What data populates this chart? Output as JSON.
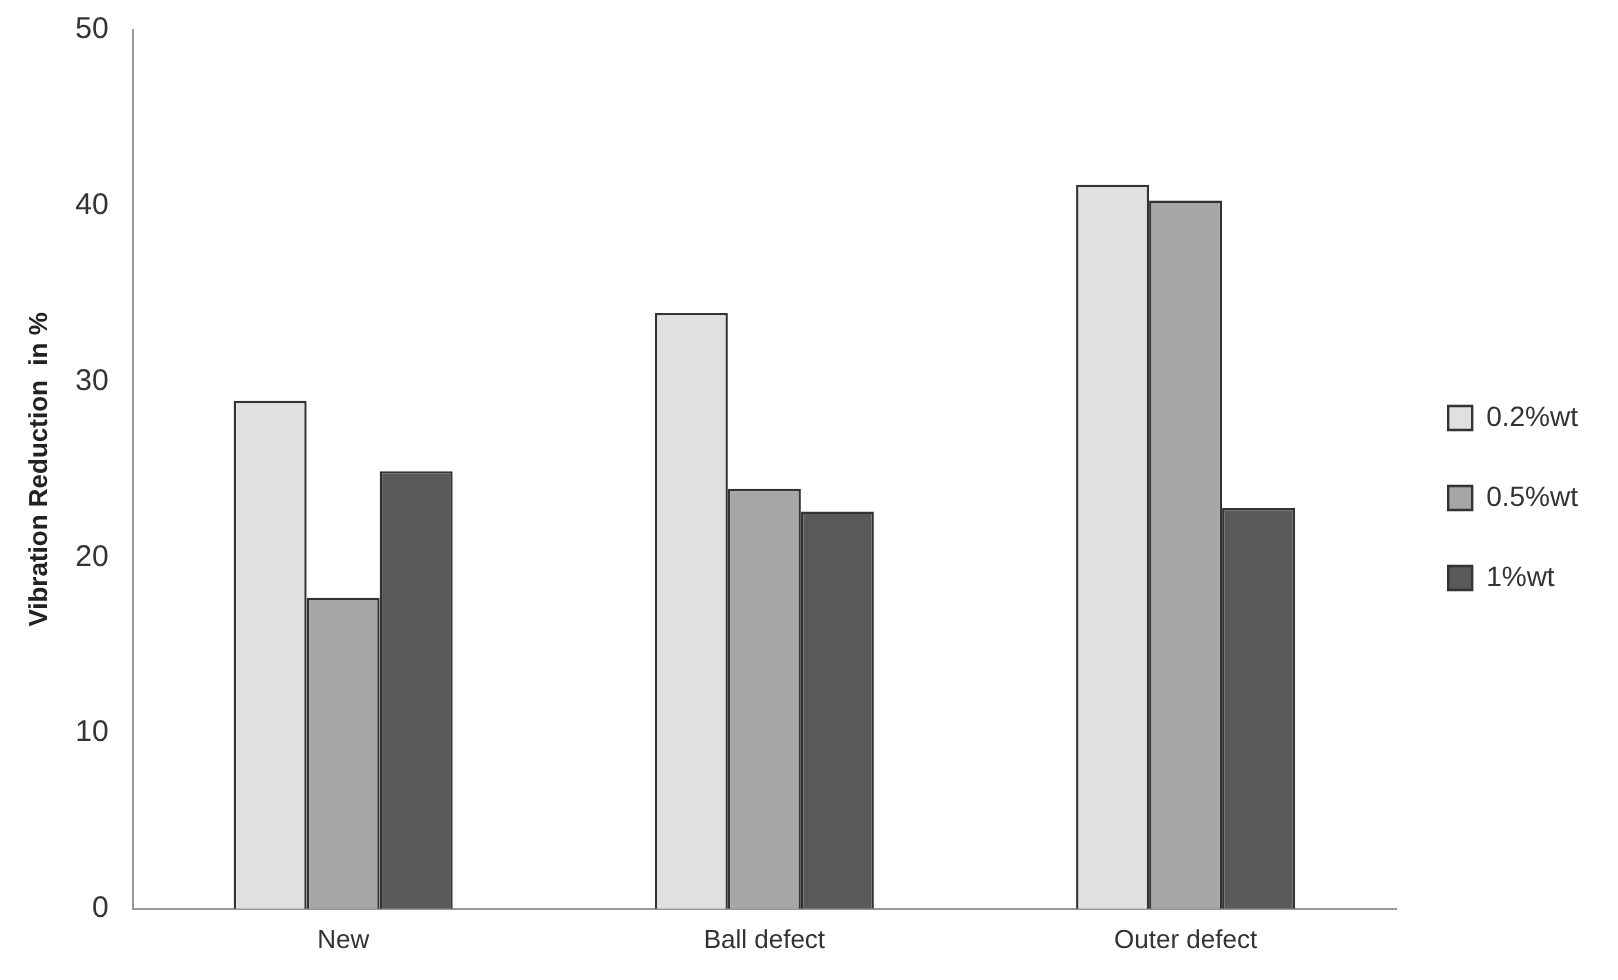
{
  "chart_data": {
    "type": "bar",
    "ylabel": "Vibration Reduction  in %",
    "categories": [
      "New",
      "Ball defect",
      "Outer defect"
    ],
    "series": [
      {
        "name": "0.2%wt",
        "color": "#e0e0e0",
        "values": [
          28.9,
          33.9,
          41.2
        ]
      },
      {
        "name": "0.5%wt",
        "color": "#a6a6a6",
        "values": [
          17.7,
          23.9,
          40.3
        ]
      },
      {
        "name": "1%wt",
        "color": "#595959",
        "values": [
          24.9,
          22.6,
          22.8
        ]
      }
    ],
    "ylim": [
      0,
      50
    ],
    "yticks": [
      0,
      10,
      20,
      30,
      40,
      50
    ],
    "grid": false,
    "legend": "right"
  }
}
